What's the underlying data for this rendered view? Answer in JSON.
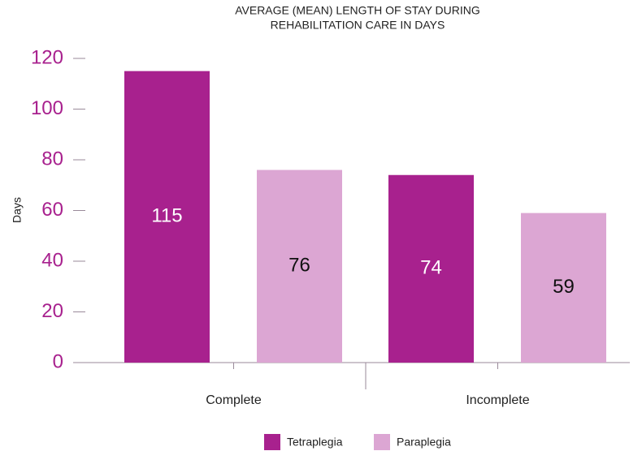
{
  "chart_data": {
    "type": "bar",
    "title": [
      "AVERAGE (MEAN) LENGTH OF STAY DURING",
      "REHABILITATION CARE IN DAYS"
    ],
    "y_label": "Days",
    "categories": [
      "Complete",
      "Incomplete"
    ],
    "series": [
      {
        "name": "Tetraplegia",
        "color": "#a8218e",
        "values": [
          115,
          74
        ]
      },
      {
        "name": "Paraplegia",
        "color": "#dca6d3",
        "values": [
          76,
          59
        ]
      }
    ],
    "ylim": [
      0,
      120
    ],
    "yticks": [
      0,
      20,
      40,
      60,
      80,
      100,
      120
    ],
    "legend": "bottom",
    "tick_label_color": "#a8218e"
  }
}
